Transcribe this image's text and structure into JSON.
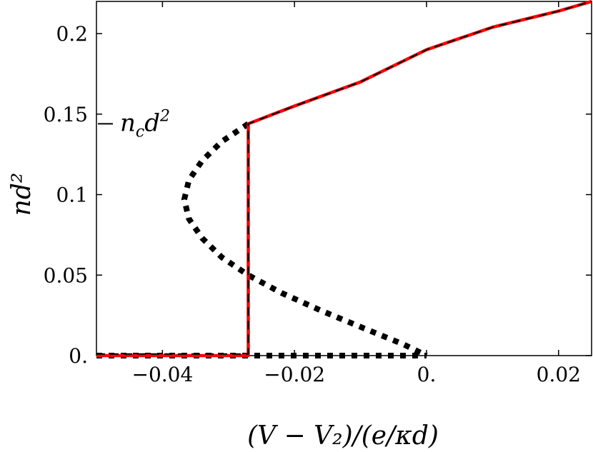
{
  "chart_data": {
    "type": "line",
    "xlabel": "(V − V₂)/(e/κd)",
    "ylabel": "nd²",
    "xlim": [
      -0.05,
      0.025
    ],
    "ylim": [
      0,
      0.22
    ],
    "xticks": [
      {
        "value": -0.04,
        "label": "−0.04"
      },
      {
        "value": -0.02,
        "label": "−0.02"
      },
      {
        "value": 0.0,
        "label": "0."
      },
      {
        "value": 0.02,
        "label": "0.02"
      }
    ],
    "yticks": [
      {
        "value": 0.0,
        "label": "0."
      },
      {
        "value": 0.05,
        "label": "0.05"
      },
      {
        "value": 0.1,
        "label": "0.1"
      },
      {
        "value": 0.15,
        "label": "0.15"
      },
      {
        "value": 0.2,
        "label": "0.2"
      }
    ],
    "annotation": {
      "label": "n_c d²",
      "y": 0.144
    },
    "grid": false,
    "series": [
      {
        "style": "dotted",
        "color": "#000000",
        "points": [
          [
            -0.027,
            0.144
          ],
          [
            -0.031,
            0.133
          ],
          [
            -0.034,
            0.121
          ],
          [
            -0.036,
            0.109
          ],
          [
            -0.0367,
            0.097
          ],
          [
            -0.036,
            0.085
          ],
          [
            -0.034,
            0.073
          ],
          [
            -0.031,
            0.061
          ],
          [
            -0.027,
            0.05
          ],
          [
            -0.022,
            0.039
          ],
          [
            -0.016,
            0.028
          ],
          [
            -0.0095,
            0.017
          ],
          [
            -0.0035,
            0.007
          ],
          [
            0.0,
            0.0
          ]
        ]
      },
      {
        "style": "dotted",
        "color": "#000000",
        "points": [
          [
            -0.05,
            0.0
          ],
          [
            0.0,
            0.0
          ]
        ]
      },
      {
        "style": "solid",
        "color": "#ff0000",
        "points": [
          [
            -0.05,
            0.0
          ],
          [
            -0.027,
            0.0
          ],
          [
            -0.027,
            0.144
          ],
          [
            -0.02,
            0.155
          ],
          [
            -0.01,
            0.17
          ],
          [
            0.0,
            0.19
          ],
          [
            0.01,
            0.204
          ],
          [
            0.02,
            0.214
          ],
          [
            0.025,
            0.22
          ]
        ]
      },
      {
        "style": "dashed",
        "color": "#000000",
        "points": [
          [
            -0.05,
            0.001
          ],
          [
            -0.027,
            0.001
          ],
          [
            -0.027,
            0.144
          ],
          [
            -0.02,
            0.155
          ],
          [
            -0.01,
            0.17
          ],
          [
            0.0,
            0.19
          ],
          [
            0.01,
            0.204
          ],
          [
            0.02,
            0.214
          ],
          [
            0.025,
            0.22
          ]
        ]
      }
    ]
  }
}
